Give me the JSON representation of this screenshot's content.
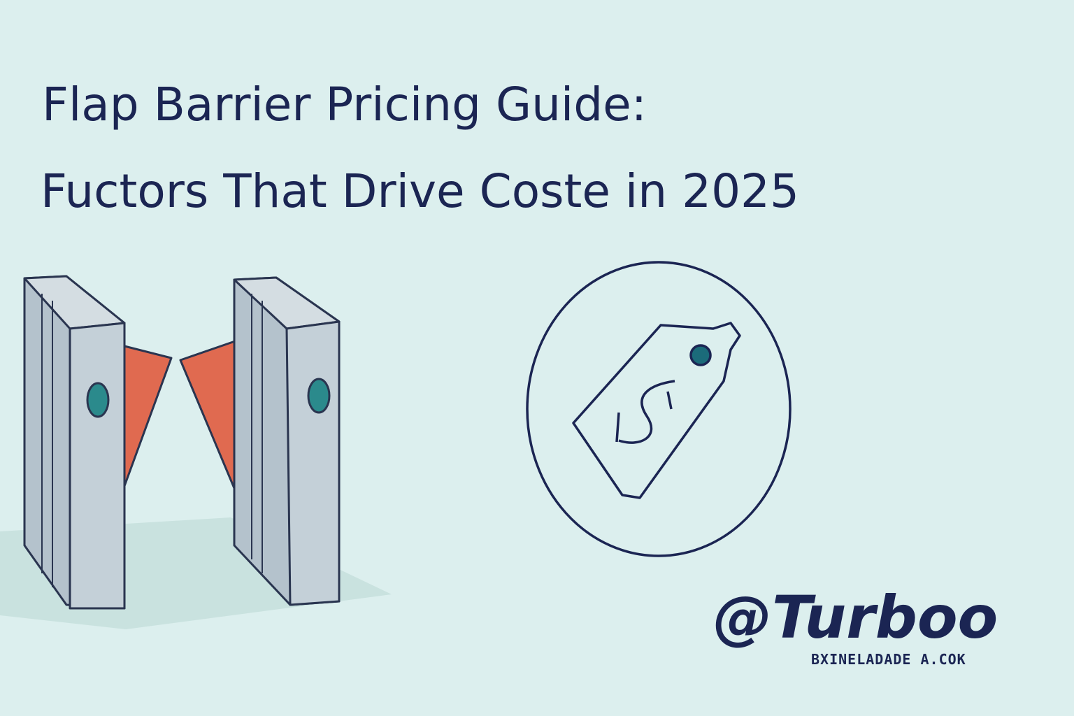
{
  "header": {
    "title_lines": [
      "Flap Barrier Pricing Guide:",
      "Fuctors That Drive Coste in 2025"
    ]
  },
  "logo": {
    "brand": "@Turboo",
    "tagline": "BXINELADADE A.COK"
  }
}
